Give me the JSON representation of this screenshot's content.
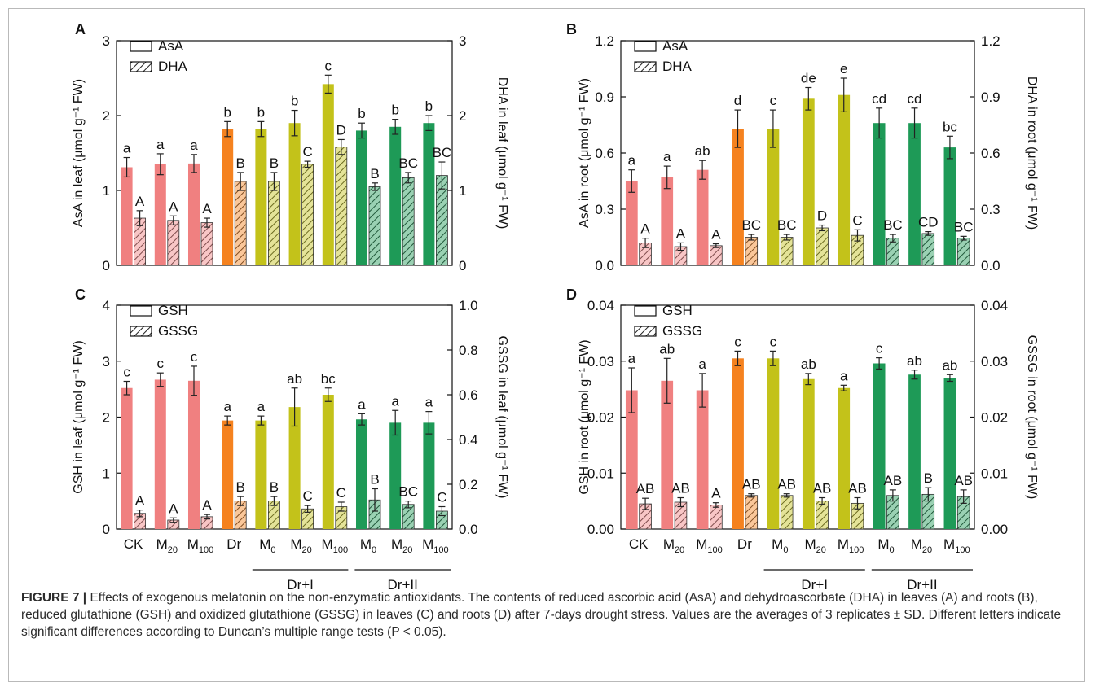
{
  "figure": {
    "caption_label": "FIGURE 7 |",
    "caption_text": "Effects of exogenous melatonin on the non-enzymatic antioxidants. The contents of reduced ascorbic acid (AsA) and dehydroascorbate (DHA) in leaves (A) and roots (B), reduced glutathione (GSH) and oxidized glutathione (GSSG) in leaves (C) and roots (D) after 7-days drought stress. Values are the averages of 3 replicates ± SD. Different letters indicate significant differences according to Duncan’s multiple range tests (P < 0.05).",
    "group_labels": [
      "Dr+I",
      "Dr+II"
    ]
  },
  "colors": {
    "ck_group": "#f08080",
    "dr": "#f5821f",
    "dr_i": "#c3c21a",
    "dr_ii": "#1e9a57"
  },
  "chart_data": [
    {
      "type": "bar",
      "panel": "A",
      "categories": [
        "CK",
        "M20",
        "M100",
        "Dr",
        "M0",
        "M20",
        "M100",
        "M0",
        "M20",
        "M100"
      ],
      "ylabel_left": "AsA in leaf (μmol g⁻¹ FW)",
      "ylabel_right": "DHA in leaf (μmol g⁻¹ FW)",
      "ylim_left": [
        0,
        3
      ],
      "ylim_right": [
        0,
        3
      ],
      "yticks_left": [
        "0",
        "1",
        "2",
        "3"
      ],
      "yticks_right": [
        "0",
        "1",
        "2",
        "3"
      ],
      "legend": [
        "AsA",
        "DHA"
      ],
      "series": [
        {
          "name": "AsA",
          "axis": "left",
          "values": [
            1.31,
            1.35,
            1.36,
            1.82,
            1.82,
            1.9,
            2.42,
            1.8,
            1.85,
            1.9
          ],
          "errors": [
            0.13,
            0.14,
            0.12,
            0.1,
            0.1,
            0.17,
            0.12,
            0.1,
            0.1,
            0.1
          ],
          "letters": [
            "a",
            "a",
            "a",
            "b",
            "b",
            "b",
            "c",
            "b",
            "b",
            "b"
          ]
        },
        {
          "name": "DHA",
          "axis": "right",
          "values": [
            0.63,
            0.6,
            0.57,
            1.12,
            1.12,
            1.35,
            1.58,
            1.05,
            1.17,
            1.2
          ],
          "errors": [
            0.1,
            0.06,
            0.06,
            0.12,
            0.12,
            0.04,
            0.1,
            0.05,
            0.07,
            0.18
          ],
          "letters": [
            "A",
            "A",
            "A",
            "B",
            "B",
            "C",
            "D",
            "B",
            "BC",
            "BC"
          ]
        }
      ]
    },
    {
      "type": "bar",
      "panel": "B",
      "categories": [
        "CK",
        "M20",
        "M100",
        "Dr",
        "M0",
        "M20",
        "M100",
        "M0",
        "M20",
        "M100"
      ],
      "ylabel_left": "AsA in root (μmol g⁻¹ FW)",
      "ylabel_right": "DHA in root (μmol g⁻¹ FW)",
      "ylim_left": [
        0,
        1.2
      ],
      "ylim_right": [
        0,
        1.2
      ],
      "yticks_left": [
        "0.0",
        "0.3",
        "0.6",
        "0.9",
        "1.2"
      ],
      "yticks_right": [
        "0.0",
        "0.3",
        "0.6",
        "0.9",
        "1.2"
      ],
      "legend": [
        "AsA",
        "DHA"
      ],
      "series": [
        {
          "name": "AsA",
          "axis": "left",
          "values": [
            0.45,
            0.47,
            0.51,
            0.73,
            0.73,
            0.89,
            0.91,
            0.76,
            0.76,
            0.63
          ],
          "errors": [
            0.06,
            0.06,
            0.05,
            0.1,
            0.1,
            0.06,
            0.09,
            0.08,
            0.08,
            0.06
          ],
          "letters": [
            "a",
            "a",
            "ab",
            "d",
            "c",
            "de",
            "e",
            "cd",
            "cd",
            "bc"
          ]
        },
        {
          "name": "DHA",
          "axis": "right",
          "values": [
            0.12,
            0.1,
            0.105,
            0.15,
            0.15,
            0.2,
            0.16,
            0.145,
            0.17,
            0.145
          ],
          "errors": [
            0.025,
            0.02,
            0.01,
            0.015,
            0.015,
            0.015,
            0.03,
            0.02,
            0.01,
            0.01
          ],
          "letters": [
            "A",
            "A",
            "A",
            "BC",
            "BC",
            "D",
            "C",
            "BC",
            "CD",
            "BC"
          ]
        }
      ]
    },
    {
      "type": "bar",
      "panel": "C",
      "categories": [
        "CK",
        "M20",
        "M100",
        "Dr",
        "M0",
        "M20",
        "M100",
        "M0",
        "M20",
        "M100"
      ],
      "ylabel_left": "GSH in leaf (μmol g⁻¹ FW)",
      "ylabel_right": "GSSG in leaf (μmol g⁻¹ FW)",
      "ylim_left": [
        0,
        4
      ],
      "ylim_right": [
        0,
        1.0
      ],
      "yticks_left": [
        "0",
        "1",
        "2",
        "3",
        "4"
      ],
      "yticks_right": [
        "0.0",
        "0.2",
        "0.4",
        "0.6",
        "0.8",
        "1.0"
      ],
      "legend": [
        "GSH",
        "GSSG"
      ],
      "series": [
        {
          "name": "GSH",
          "axis": "left",
          "values": [
            2.52,
            2.67,
            2.65,
            1.94,
            1.94,
            2.18,
            2.4,
            1.96,
            1.9,
            1.9
          ],
          "errors": [
            0.12,
            0.12,
            0.26,
            0.08,
            0.08,
            0.34,
            0.12,
            0.1,
            0.22,
            0.2
          ],
          "letters": [
            "c",
            "c",
            "c",
            "a",
            "a",
            "ab",
            "bc",
            "a",
            "a",
            "a"
          ]
        },
        {
          "name": "GSSG",
          "axis": "right",
          "values": [
            0.07,
            0.04,
            0.055,
            0.125,
            0.125,
            0.09,
            0.1,
            0.13,
            0.11,
            0.08
          ],
          "errors": [
            0.015,
            0.01,
            0.01,
            0.02,
            0.02,
            0.015,
            0.02,
            0.05,
            0.015,
            0.02
          ],
          "letters": [
            "A",
            "A",
            "A",
            "B",
            "B",
            "C",
            "C",
            "B",
            "BC",
            "C"
          ]
        }
      ]
    },
    {
      "type": "bar",
      "panel": "D",
      "categories": [
        "CK",
        "M20",
        "M100",
        "Dr",
        "M0",
        "M20",
        "M100",
        "M0",
        "M20",
        "M100"
      ],
      "ylabel_left": "GSH in root (μmol g⁻¹ FW)",
      "ylabel_right": "GSSG in root (μmol g⁻¹ FW)",
      "ylim_left": [
        0,
        0.04
      ],
      "ylim_right": [
        0,
        0.04
      ],
      "yticks_left": [
        "0.00",
        "0.01",
        "0.02",
        "0.03",
        "0.04"
      ],
      "yticks_right": [
        "0.00",
        "0.01",
        "0.02",
        "0.03",
        "0.04"
      ],
      "legend": [
        "GSH",
        "GSSG"
      ],
      "series": [
        {
          "name": "GSH",
          "axis": "left",
          "values": [
            0.0248,
            0.0265,
            0.0248,
            0.0305,
            0.0305,
            0.0268,
            0.0252,
            0.0296,
            0.0276,
            0.027
          ],
          "errors": [
            0.004,
            0.004,
            0.003,
            0.0013,
            0.0013,
            0.001,
            0.0005,
            0.001,
            0.0008,
            0.0006
          ],
          "letters": [
            "a",
            "ab",
            "a",
            "c",
            "c",
            "ab",
            "a",
            "c",
            "ab",
            "ab"
          ]
        },
        {
          "name": "GSSG",
          "axis": "right",
          "values": [
            0.0045,
            0.0048,
            0.0043,
            0.006,
            0.006,
            0.005,
            0.0046,
            0.006,
            0.0062,
            0.0058
          ],
          "errors": [
            0.001,
            0.0008,
            0.0004,
            0.0003,
            0.0003,
            0.0006,
            0.001,
            0.001,
            0.0012,
            0.0012
          ],
          "letters": [
            "AB",
            "AB",
            "A",
            "AB",
            "AB",
            "AB",
            "AB",
            "AB",
            "B",
            "AB"
          ]
        }
      ]
    }
  ]
}
